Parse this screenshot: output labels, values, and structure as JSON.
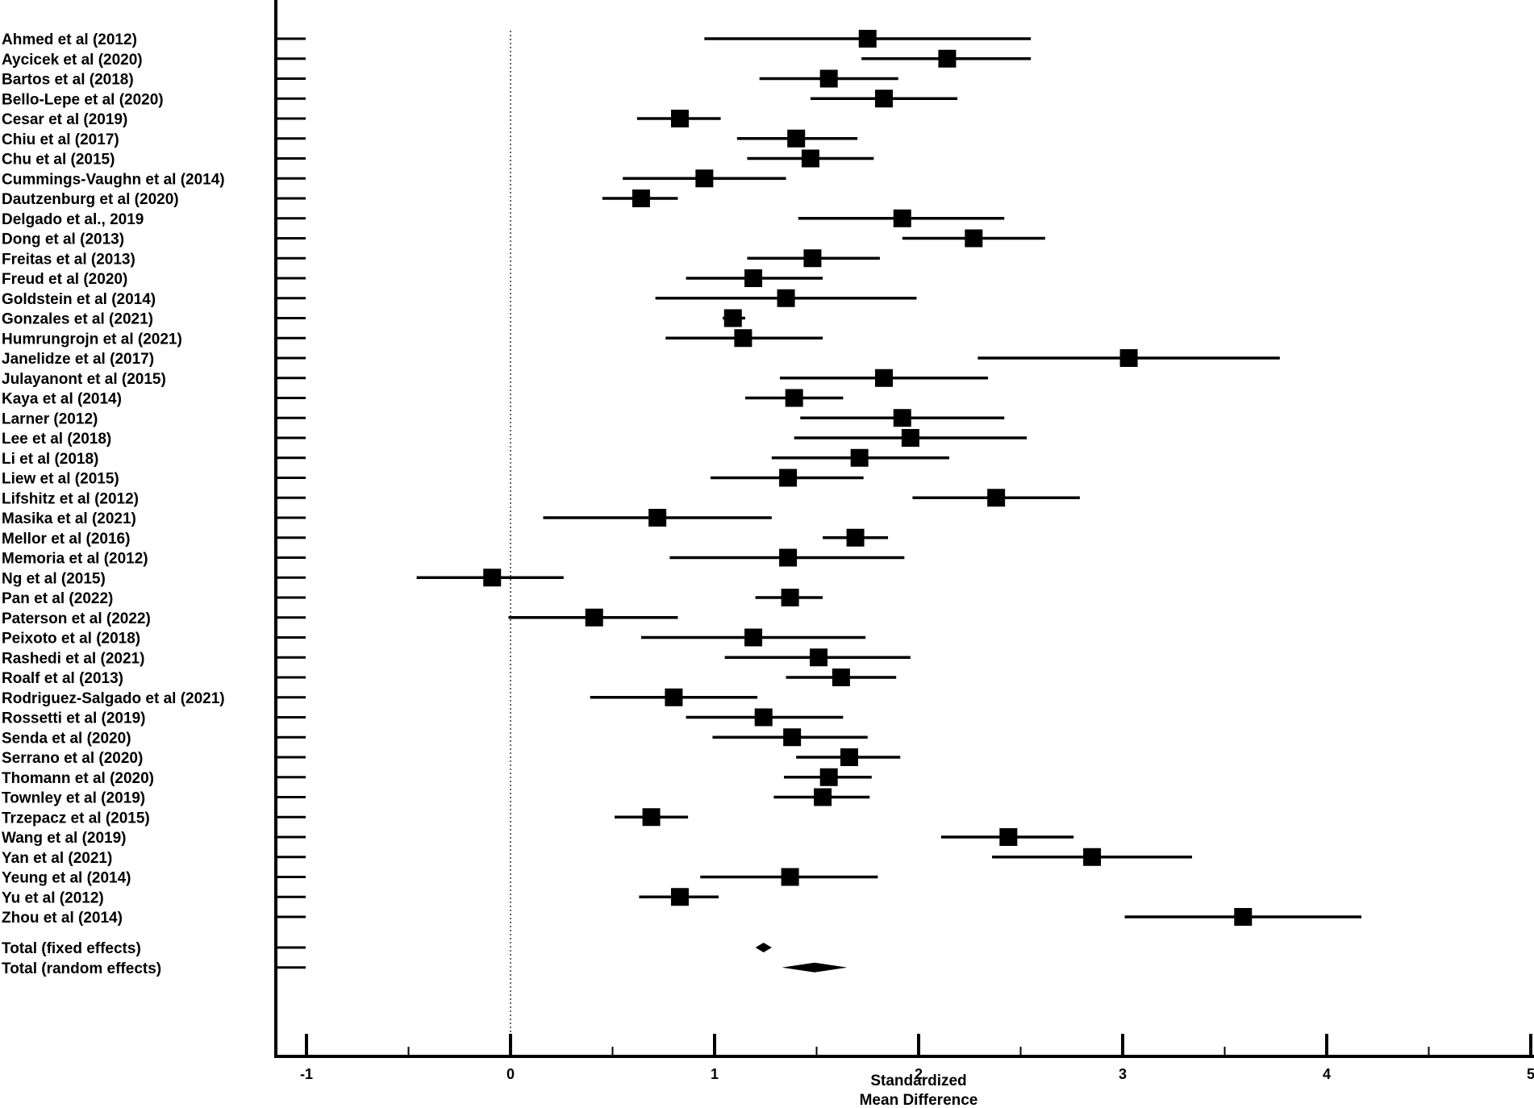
{
  "chart_data": {
    "type": "forest",
    "xlabel_lines": [
      "Standardized",
      "Mean Difference"
    ],
    "xlim": [
      -1.15,
      5.05
    ],
    "x_ticks": [
      -1,
      0,
      1,
      2,
      3,
      4,
      5
    ],
    "x_tick_labels": [
      "-1",
      "0",
      "1",
      "2",
      "3",
      "4",
      "5"
    ],
    "minor_step": 0.5,
    "reference_line": 0,
    "studies": [
      {
        "label": "Ahmed et al (2012)",
        "estimate": 1.75,
        "lower": 0.95,
        "upper": 2.55
      },
      {
        "label": "Aycicek et al (2020)",
        "estimate": 2.14,
        "lower": 1.72,
        "upper": 2.55
      },
      {
        "label": "Bartos et al (2018)",
        "estimate": 1.56,
        "lower": 1.22,
        "upper": 1.9
      },
      {
        "label": "Bello-Lepe et al (2020)",
        "estimate": 1.83,
        "lower": 1.47,
        "upper": 2.19
      },
      {
        "label": "Cesar et al (2019)",
        "estimate": 0.83,
        "lower": 0.62,
        "upper": 1.03
      },
      {
        "label": "Chiu et al (2017)",
        "estimate": 1.4,
        "lower": 1.11,
        "upper": 1.7
      },
      {
        "label": "Chu et al (2015)",
        "estimate": 1.47,
        "lower": 1.16,
        "upper": 1.78
      },
      {
        "label": "Cummings-Vaughn et al (2014)",
        "estimate": 0.95,
        "lower": 0.55,
        "upper": 1.35
      },
      {
        "label": "Dautzenburg et al (2020)",
        "estimate": 0.64,
        "lower": 0.45,
        "upper": 0.82
      },
      {
        "label": "Delgado et al., 2019",
        "estimate": 1.92,
        "lower": 1.41,
        "upper": 2.42
      },
      {
        "label": "Dong et al (2013)",
        "estimate": 2.27,
        "lower": 1.92,
        "upper": 2.62
      },
      {
        "label": "Freitas et al (2013)",
        "estimate": 1.48,
        "lower": 1.16,
        "upper": 1.81
      },
      {
        "label": "Freud et al (2020)",
        "estimate": 1.19,
        "lower": 0.86,
        "upper": 1.53
      },
      {
        "label": "Goldstein et al (2014)",
        "estimate": 1.35,
        "lower": 0.71,
        "upper": 1.99
      },
      {
        "label": "Gonzales et al (2021)",
        "estimate": 1.09,
        "lower": 1.04,
        "upper": 1.15
      },
      {
        "label": "Humrungrojn et al (2021)",
        "estimate": 1.14,
        "lower": 0.76,
        "upper": 1.53
      },
      {
        "label": "Janelidze et al (2017)",
        "estimate": 3.03,
        "lower": 2.29,
        "upper": 3.77
      },
      {
        "label": "Julayanont et al (2015)",
        "estimate": 1.83,
        "lower": 1.32,
        "upper": 2.34
      },
      {
        "label": "Kaya et al (2014)",
        "estimate": 1.39,
        "lower": 1.15,
        "upper": 1.63
      },
      {
        "label": "Larner (2012)",
        "estimate": 1.92,
        "lower": 1.42,
        "upper": 2.42
      },
      {
        "label": "Lee et al (2018)",
        "estimate": 1.96,
        "lower": 1.39,
        "upper": 2.53
      },
      {
        "label": "Li et al (2018)",
        "estimate": 1.71,
        "lower": 1.28,
        "upper": 2.15
      },
      {
        "label": "Liew et al (2015)",
        "estimate": 1.36,
        "lower": 0.98,
        "upper": 1.73
      },
      {
        "label": "Lifshitz et al (2012)",
        "estimate": 2.38,
        "lower": 1.97,
        "upper": 2.79
      },
      {
        "label": "Masika et al (2021)",
        "estimate": 0.72,
        "lower": 0.16,
        "upper": 1.28
      },
      {
        "label": "Mellor et al (2016)",
        "estimate": 1.69,
        "lower": 1.53,
        "upper": 1.85
      },
      {
        "label": "Memoria et al (2012)",
        "estimate": 1.36,
        "lower": 0.78,
        "upper": 1.93
      },
      {
        "label": "Ng et al (2015)",
        "estimate": -0.09,
        "lower": -0.46,
        "upper": 0.26
      },
      {
        "label": "Pan et al (2022)",
        "estimate": 1.37,
        "lower": 1.2,
        "upper": 1.53
      },
      {
        "label": "Paterson et al (2022)",
        "estimate": 0.41,
        "lower": -0.01,
        "upper": 0.82
      },
      {
        "label": "Peixoto et al (2018)",
        "estimate": 1.19,
        "lower": 0.64,
        "upper": 1.74
      },
      {
        "label": "Rashedi et al (2021)",
        "estimate": 1.51,
        "lower": 1.05,
        "upper": 1.96
      },
      {
        "label": "Roalf et al (2013)",
        "estimate": 1.62,
        "lower": 1.35,
        "upper": 1.89
      },
      {
        "label": "Rodriguez-Salgado et al (2021)",
        "estimate": 0.8,
        "lower": 0.39,
        "upper": 1.21
      },
      {
        "label": "Rossetti et al (2019)",
        "estimate": 1.24,
        "lower": 0.86,
        "upper": 1.63
      },
      {
        "label": "Senda et al (2020)",
        "estimate": 1.38,
        "lower": 0.99,
        "upper": 1.75
      },
      {
        "label": "Serrano et al (2020)",
        "estimate": 1.66,
        "lower": 1.4,
        "upper": 1.91
      },
      {
        "label": "Thomann et al (2020)",
        "estimate": 1.56,
        "lower": 1.34,
        "upper": 1.77
      },
      {
        "label": "Townley et al (2019)",
        "estimate": 1.53,
        "lower": 1.29,
        "upper": 1.76
      },
      {
        "label": "Trzepacz et al (2015)",
        "estimate": 0.69,
        "lower": 0.51,
        "upper": 0.87
      },
      {
        "label": "Wang et al (2019)",
        "estimate": 2.44,
        "lower": 2.11,
        "upper": 2.76
      },
      {
        "label": "Yan et al (2021)",
        "estimate": 2.85,
        "lower": 2.36,
        "upper": 3.34
      },
      {
        "label": "Yeung et al (2014)",
        "estimate": 1.37,
        "lower": 0.93,
        "upper": 1.8
      },
      {
        "label": "Yu et al (2012)",
        "estimate": 0.83,
        "lower": 0.63,
        "upper": 1.02
      },
      {
        "label": "Zhou et al (2014)",
        "estimate": 3.59,
        "lower": 3.01,
        "upper": 4.17
      }
    ],
    "totals": [
      {
        "label": "Total (fixed effects)",
        "estimate": 1.24,
        "lower": 1.2,
        "upper": 1.28
      },
      {
        "label": "Total (random effects)",
        "estimate": 1.49,
        "lower": 1.33,
        "upper": 1.65
      }
    ]
  }
}
